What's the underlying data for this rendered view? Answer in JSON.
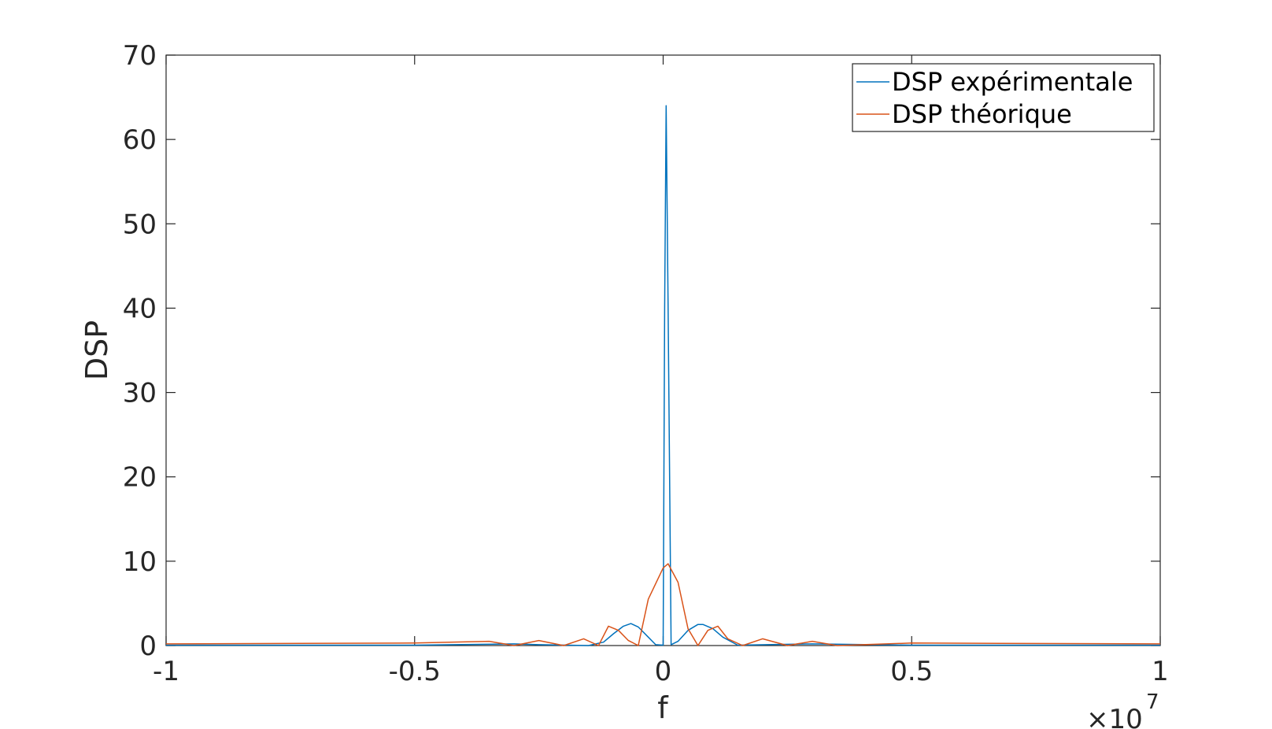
{
  "chart_data": {
    "type": "line",
    "xlabel": "f",
    "ylabel": "DSP",
    "xlim": [
      -1,
      1
    ],
    "ylim": [
      0,
      70
    ],
    "x_multiplier": "×10",
    "x_multiplier_exponent": "7",
    "x_ticks": [
      -1,
      -0.5,
      0,
      0.5,
      1
    ],
    "x_tick_labels": [
      "-1",
      "-0.5",
      "0",
      "0.5",
      "1"
    ],
    "y_ticks": [
      0,
      10,
      20,
      30,
      40,
      50,
      60,
      70
    ],
    "y_tick_labels": [
      "0",
      "10",
      "20",
      "30",
      "40",
      "50",
      "60",
      "70"
    ],
    "grid": false,
    "legend_position": "top-right",
    "series": [
      {
        "name": "DSP expérimentale",
        "color": "#0072BD",
        "x": [
          -1,
          -0.5,
          -0.3,
          -0.25,
          -0.15,
          -0.12,
          -0.1,
          -0.08,
          -0.065,
          -0.05,
          -0.03,
          -0.015,
          0.0,
          0.003,
          0.006,
          0.01,
          0.016,
          0.03,
          0.05,
          0.07,
          0.08,
          0.1,
          0.12,
          0.15,
          0.3,
          0.5,
          1
        ],
        "y": [
          0.05,
          0.05,
          0.2,
          0.1,
          0.0,
          0.4,
          1.4,
          2.3,
          2.6,
          2.2,
          1.0,
          0.1,
          0.05,
          40,
          64,
          40,
          0.1,
          0.5,
          1.8,
          2.5,
          2.5,
          2.0,
          1.0,
          0.05,
          0.2,
          0.05,
          0.05
        ]
      },
      {
        "name": "DSP théorique",
        "color": "#D95319",
        "x": [
          -1,
          -0.5,
          -0.35,
          -0.3,
          -0.25,
          -0.2,
          -0.16,
          -0.13,
          -0.11,
          -0.09,
          -0.07,
          -0.05,
          -0.03,
          0.0,
          0.01,
          0.03,
          0.05,
          0.07,
          0.09,
          0.11,
          0.13,
          0.16,
          0.2,
          0.25,
          0.3,
          0.35,
          0.5,
          1
        ],
        "y": [
          0.2,
          0.3,
          0.5,
          0.0,
          0.6,
          0.0,
          0.8,
          0.0,
          2.3,
          1.8,
          0.6,
          0.0,
          5.5,
          9.2,
          9.7,
          7.5,
          2.0,
          0.0,
          1.8,
          2.3,
          0.8,
          0.0,
          0.8,
          0.0,
          0.5,
          0.0,
          0.3,
          0.2
        ]
      }
    ]
  }
}
